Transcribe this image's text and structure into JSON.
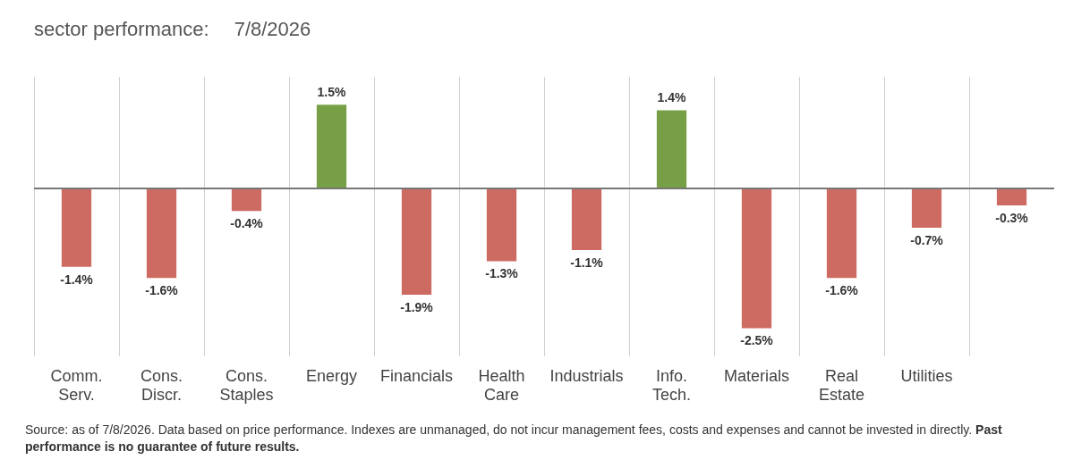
{
  "chart_data": {
    "type": "bar",
    "title": "sector performance:",
    "subtitle": "7/8/2026",
    "categories": [
      "Comm. Serv.",
      "Cons. Discr.",
      "Cons. Staples",
      "Energy",
      "Financials",
      "Health Care",
      "Industrials",
      "Info. Tech.",
      "Materials",
      "Real Estate",
      "Utilities",
      null
    ],
    "values": [
      -1.4,
      -1.6,
      -0.4,
      1.5,
      -1.9,
      -1.3,
      -1.1,
      1.4,
      -2.5,
      -1.6,
      -0.7,
      -0.3
    ],
    "value_labels": [
      "-1.4%",
      "-1.6%",
      "-0.4%",
      "1.5%",
      "-1.9%",
      "-1.3%",
      "-1.1%",
      "1.4%",
      "-2.5%",
      "-1.6%",
      "-0.7%",
      "-0.3%"
    ],
    "colors": [
      "#cd6b62",
      "#cd6b62",
      "#cd6b62",
      "#77a046",
      "#cd6b62",
      "#cd6b62",
      "#cd6b62",
      "#77a046",
      "#cd6b62",
      "#cd6b62",
      "#cd6b62",
      "#cd6b62"
    ],
    "grid": "x",
    "legend": false,
    "annotations": [
      "Source: as of 7/8/2026. Data based on price performance. Indexes are unmanaged, do not incur management fees, costs and expenses and cannot be invested in directly.",
      "Past performance is no guarantee of future results."
    ]
  }
}
